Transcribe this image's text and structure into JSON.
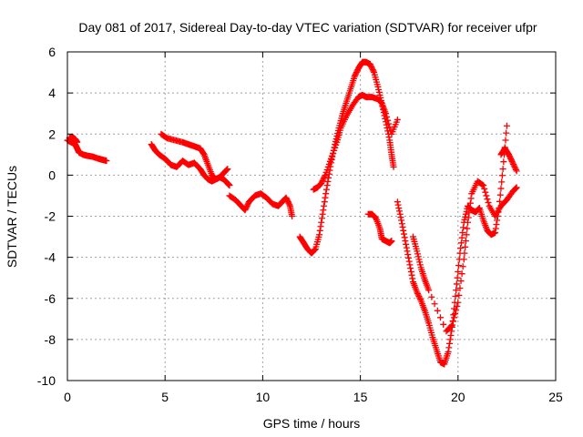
{
  "chart_data": {
    "type": "scatter",
    "title": "Day 081 of 2017, Sidereal Day-to-day VTEC variation (SDTVAR) for receiver ufpr",
    "xlabel": "GPS time / hours",
    "ylabel": "SDTVAR / TECUs",
    "xlim": [
      0,
      25
    ],
    "ylim": [
      -10,
      6
    ],
    "grid": true,
    "marker": "+",
    "color": "#ff0000",
    "xticks": [
      "0",
      "5",
      "10",
      "15",
      "20",
      "25"
    ],
    "yticks": [
      "-10",
      "-8",
      "-6",
      "-4",
      "-2",
      "0",
      "2",
      "4",
      "6"
    ],
    "series": [
      {
        "name": "seg1",
        "x": [
          0.0,
          0.2,
          0.4,
          0.5,
          0.6,
          0.8,
          1.0,
          1.3,
          1.6,
          1.8,
          2.0
        ],
        "y": [
          1.7,
          1.6,
          1.5,
          1.3,
          1.1,
          1.0,
          0.95,
          0.9,
          0.8,
          0.75,
          0.7
        ]
      },
      {
        "name": "seg1b",
        "x": [
          0.1,
          0.25,
          0.4,
          0.5
        ],
        "y": [
          1.8,
          1.85,
          1.75,
          1.6
        ]
      },
      {
        "name": "seg2",
        "x": [
          4.3,
          4.5,
          4.7,
          5.0,
          5.3,
          5.6,
          5.9,
          6.2,
          6.5,
          6.8,
          7.0,
          7.2,
          7.4,
          7.6,
          7.8,
          8.0,
          8.2,
          8.3
        ],
        "y": [
          1.5,
          1.2,
          1.0,
          0.8,
          0.5,
          0.4,
          0.7,
          0.5,
          0.6,
          0.3,
          0.0,
          -0.2,
          -0.3,
          -0.2,
          -0.1,
          -0.2,
          -0.4,
          -0.5
        ]
      },
      {
        "name": "seg2b",
        "x": [
          4.8,
          5.1,
          5.5,
          5.9,
          6.2,
          6.5,
          6.8,
          7.0,
          7.2,
          7.4,
          7.6,
          7.8,
          8.0,
          8.2
        ],
        "y": [
          2.0,
          1.8,
          1.7,
          1.6,
          1.5,
          1.4,
          1.3,
          1.0,
          0.5,
          0.0,
          -0.2,
          -0.1,
          0.1,
          0.3
        ]
      },
      {
        "name": "seg3",
        "x": [
          8.3,
          8.6,
          8.9,
          9.1,
          9.3,
          9.6,
          9.9,
          10.2,
          10.5,
          10.8,
          11.0,
          11.2,
          11.4,
          11.5
        ],
        "y": [
          -1.0,
          -1.2,
          -1.5,
          -1.7,
          -1.3,
          -1.0,
          -0.9,
          -1.1,
          -1.4,
          -1.5,
          -1.3,
          -1.1,
          -1.5,
          -2.0
        ]
      },
      {
        "name": "seg4",
        "x": [
          11.9,
          12.1,
          12.3,
          12.5,
          12.7,
          12.9,
          13.1,
          13.3,
          13.5,
          13.7,
          13.9,
          14.1,
          14.3,
          14.5,
          14.7,
          14.9,
          15.1,
          15.3,
          15.5,
          15.7,
          15.9,
          16.1,
          16.3,
          16.5,
          16.6,
          16.7
        ],
        "y": [
          -3.0,
          -3.3,
          -3.6,
          -3.8,
          -3.6,
          -2.9,
          -1.7,
          -0.5,
          0.6,
          1.5,
          2.3,
          3.0,
          3.6,
          4.2,
          4.8,
          5.2,
          5.5,
          5.5,
          5.4,
          5.0,
          4.3,
          3.5,
          2.6,
          1.7,
          1.0,
          0.4
        ]
      },
      {
        "name": "seg4b",
        "x": [
          12.6,
          12.8,
          13.0,
          13.2,
          13.5,
          13.8,
          14.0,
          14.3,
          14.6,
          14.9,
          15.1,
          15.3,
          15.6,
          15.9,
          16.1,
          16.3,
          16.6,
          16.9
        ],
        "y": [
          -0.7,
          -0.6,
          -0.4,
          0.0,
          0.8,
          1.6,
          2.3,
          2.9,
          3.4,
          3.8,
          3.9,
          3.8,
          3.8,
          3.7,
          3.5,
          3.0,
          2.0,
          2.7
        ]
      },
      {
        "name": "seg5",
        "x": [
          15.4,
          15.6,
          15.8,
          16.0,
          16.1,
          16.3,
          16.5,
          16.6
        ],
        "y": [
          -1.9,
          -1.9,
          -2.1,
          -2.6,
          -3.1,
          -3.2,
          -3.3,
          -3.2
        ]
      },
      {
        "name": "seg6",
        "x": [
          16.9,
          17.1,
          17.3,
          17.5,
          17.7,
          17.9,
          18.1,
          18.3,
          18.5,
          18.7,
          18.9,
          19.1,
          19.3,
          19.5,
          19.7,
          19.9,
          20.1,
          20.3,
          20.5,
          20.7,
          20.9,
          21.1,
          21.3,
          21.5,
          21.7,
          21.9,
          22.1,
          22.3,
          22.5
        ],
        "y": [
          -1.3,
          -2.2,
          -3.2,
          -4.2,
          -5.2,
          -5.7,
          -6.1,
          -6.6,
          -7.2,
          -7.9,
          -8.5,
          -9.1,
          -9.2,
          -8.6,
          -7.4,
          -5.6,
          -3.8,
          -2.3,
          -1.5,
          -1.7,
          -1.8,
          -1.6,
          -2.2,
          -2.7,
          -2.9,
          -2.8,
          -1.6,
          0.3,
          2.4
        ]
      },
      {
        "name": "seg6b",
        "x": [
          17.7,
          17.9,
          18.1,
          18.3,
          18.5,
          19.4,
          19.7,
          20.0,
          20.3,
          20.5,
          20.7,
          21.0,
          21.3,
          21.6,
          21.9,
          22.2,
          22.5,
          22.8,
          23.0
        ],
        "y": [
          -3.0,
          -3.7,
          -4.5,
          -5.1,
          -5.6,
          -7.6,
          -7.3,
          -6.2,
          -4.1,
          -2.3,
          -0.9,
          -0.3,
          -0.5,
          -1.5,
          -2.0,
          -1.5,
          -1.2,
          -0.8,
          -0.6
        ]
      },
      {
        "name": "seg6c",
        "x": [
          22.2,
          22.4,
          22.6,
          22.8,
          23.0
        ],
        "y": [
          1.0,
          1.3,
          1.0,
          0.6,
          0.2
        ]
      }
    ]
  }
}
